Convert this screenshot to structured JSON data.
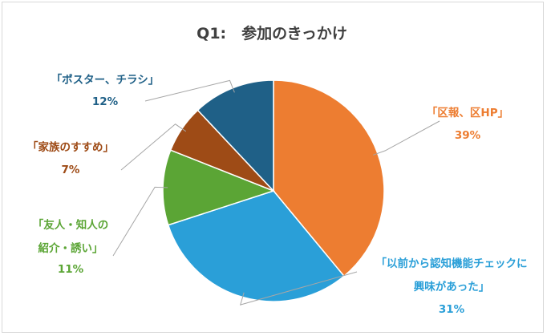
{
  "chart_data": {
    "type": "pie",
    "title": "Q1:　参加のきっかけ",
    "slices": [
      {
        "label": "「区報、区HP」",
        "label_lines": [
          "「区報、区HP」"
        ],
        "value": 39,
        "value_text": "39%",
        "color": "#ED7D31"
      },
      {
        "label": "「以前から認知機能チェックに興味があった」",
        "label_lines": [
          "「以前から認知機能チェックに",
          "興味があった」"
        ],
        "value": 31,
        "value_text": "31%",
        "color": "#2A9FD8"
      },
      {
        "label": "「友人・知人の紹介・誘い」",
        "label_lines": [
          "「友人・知人の",
          "紹介・誘い」"
        ],
        "value": 11,
        "value_text": "11%",
        "color": "#5BA535"
      },
      {
        "label": "「家族のすすめ」",
        "label_lines": [
          "「家族のすすめ」"
        ],
        "value": 7,
        "value_text": "7%",
        "color": "#9E4B16"
      },
      {
        "label": "「ポスター、チラシ」",
        "label_lines": [
          "「ポスター、チラシ」"
        ],
        "value": 12,
        "value_text": "12%",
        "color": "#1F6087"
      }
    ],
    "label_colors": [
      "#ED7D31",
      "#2A9FD8",
      "#5BA535",
      "#9E4B16",
      "#1F6087"
    ],
    "start_angle": "12 o'clock",
    "direction": "clockwise",
    "legend": "none"
  }
}
